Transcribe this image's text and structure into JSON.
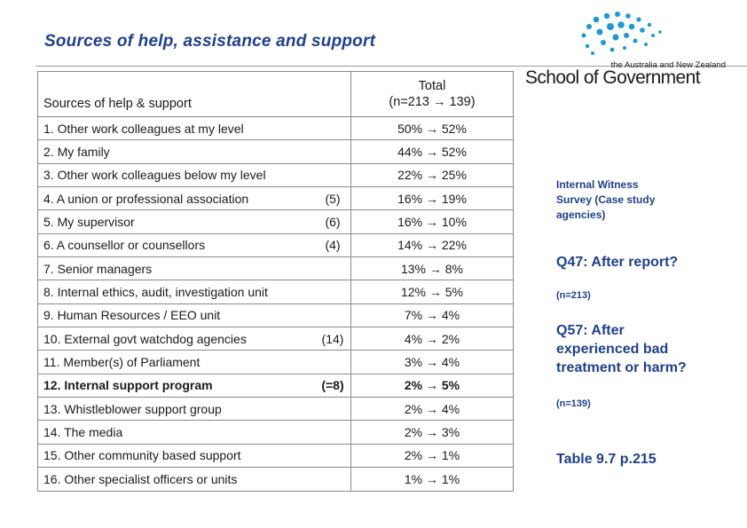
{
  "title": "Sources of help, assistance and support",
  "table": {
    "header": {
      "label": "Sources of help & support",
      "total_line1": "Total",
      "total_line2": "(n=213 → 139)"
    },
    "rows": [
      {
        "label": "1. Other work colleagues at my level",
        "count": "",
        "value": "50% → 52%"
      },
      {
        "label": "2. My family",
        "count": "",
        "value": "44% → 52%"
      },
      {
        "label": "3. Other work colleagues below my level",
        "count": "",
        "value": "22% → 25%"
      },
      {
        "label": "4. A union or professional association",
        "count": "(5)",
        "value": "16% → 19%"
      },
      {
        "label": "5. My supervisor",
        "count": "(6)",
        "value": "16% → 10%"
      },
      {
        "label": "6. A counsellor or counsellors",
        "count": "(4)",
        "value": "14% → 22%"
      },
      {
        "label": "7. Senior managers",
        "count": "",
        "value": "13% → 8%"
      },
      {
        "label": "8. Internal ethics, audit, investigation unit",
        "count": "",
        "value": "12% → 5%"
      },
      {
        "label": "9. Human Resources / EEO unit",
        "count": "",
        "value": "7% → 4%"
      },
      {
        "label": "10. External govt watchdog agencies",
        "count": "(14)",
        "value": "4% → 2%"
      },
      {
        "label": "11. Member(s) of Parliament",
        "count": "",
        "value": "3% → 4%"
      },
      {
        "label": "12. Internal support program",
        "count": "(=8)",
        "value": "2% → 5%"
      },
      {
        "label": "13. Whistleblower support group",
        "count": "",
        "value": "2% → 4%"
      },
      {
        "label": "14. The media",
        "count": "",
        "value": "2% → 3%"
      },
      {
        "label": "15. Other community based support",
        "count": "",
        "value": "2% → 1%"
      },
      {
        "label": "16. Other specialist officers or units",
        "count": "",
        "value": "1% → 1%"
      }
    ]
  },
  "logo": {
    "subtitle": "the Australia and New Zealand",
    "name": "School of Government"
  },
  "sidebar": {
    "survey": "Internal Witness Survey (Case study agencies)",
    "q47": "Q47: After report?",
    "q47_n": "(n=213)",
    "q57": "Q57: After experienced bad treatment or harm?",
    "q57_n": "(n=139)",
    "table_ref": "Table 9.7 p.215"
  },
  "colors": {
    "accent": "#1f3f8f",
    "logo_dots": "#1a9ad6"
  }
}
